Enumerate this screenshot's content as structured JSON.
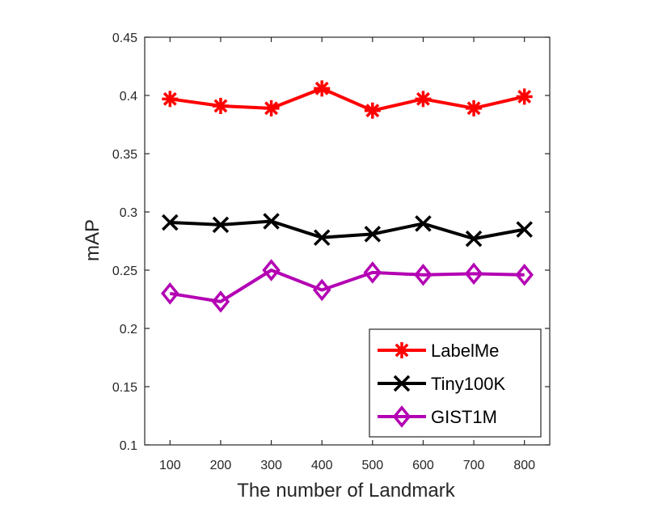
{
  "chart_data": {
    "type": "line",
    "title": "",
    "xlabel": "The number of Landmark",
    "ylabel": "mAP",
    "categories": [
      100,
      200,
      300,
      400,
      500,
      600,
      700,
      800
    ],
    "xlim": [
      50,
      850
    ],
    "ylim": [
      0.1,
      0.45
    ],
    "yticks": [
      0.1,
      0.15,
      0.2,
      0.25,
      0.3,
      0.35,
      0.4,
      0.45
    ],
    "ytick_labels": [
      "0.1",
      "0.15",
      "0.2",
      "0.25",
      "0.3",
      "0.35",
      "0.4",
      "0.45"
    ],
    "xtick_labels": [
      "100",
      "200",
      "300",
      "400",
      "500",
      "600",
      "700",
      "800"
    ],
    "grid": false,
    "legend_position": "bottom-right",
    "series": [
      {
        "name": "LabelMe",
        "color": "#ff0000",
        "marker": "asterisk",
        "values": [
          0.397,
          0.391,
          0.389,
          0.406,
          0.387,
          0.397,
          0.389,
          0.399
        ]
      },
      {
        "name": "Tiny100K",
        "color": "#000000",
        "marker": "x",
        "values": [
          0.291,
          0.289,
          0.292,
          0.278,
          0.281,
          0.29,
          0.277,
          0.285
        ]
      },
      {
        "name": "GIST1M",
        "color": "#b300b3",
        "marker": "diamond",
        "values": [
          0.23,
          0.223,
          0.25,
          0.233,
          0.248,
          0.246,
          0.247,
          0.246
        ]
      }
    ]
  }
}
